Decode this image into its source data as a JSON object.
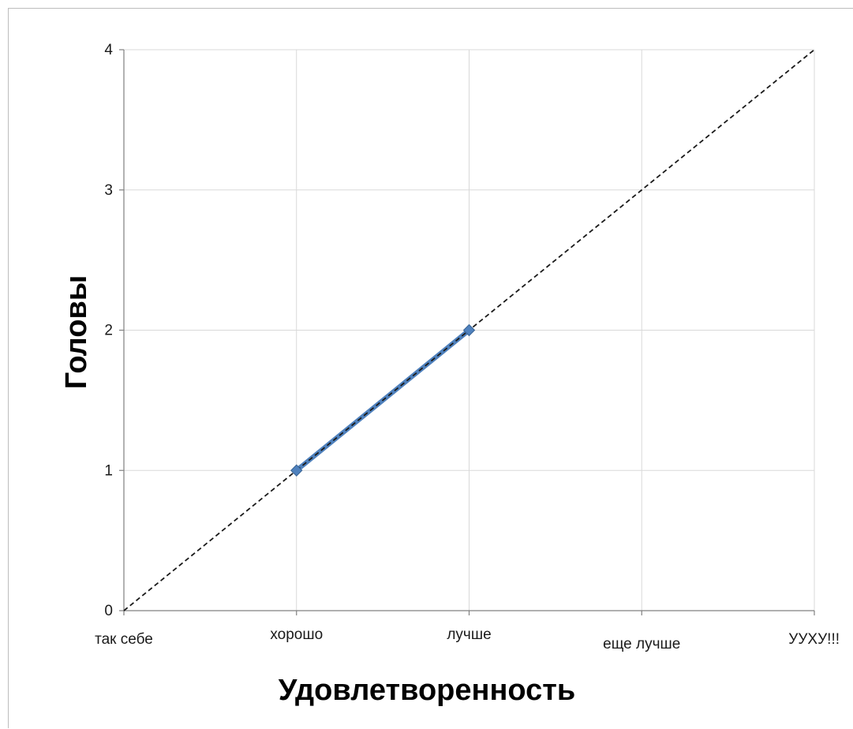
{
  "chart_data": {
    "type": "line",
    "title": "",
    "xlabel": "Удовлетворенность",
    "ylabel": "Головы",
    "categories": [
      "так себе",
      "хорошо",
      "лучше",
      "еще лучше",
      "УУХУ!!!"
    ],
    "yticks": [
      "0",
      "1",
      "2",
      "3",
      "4"
    ],
    "ylim": [
      0,
      4
    ],
    "grid": true,
    "series": [
      {
        "points": [
          {
            "x": "хорошо",
            "y": 1
          },
          {
            "x": "лучше",
            "y": 2
          }
        ]
      }
    ],
    "trendline": {
      "style": "dashed",
      "from": {
        "x": "так себе",
        "y": 0
      },
      "to": {
        "x": "УУХУ!!!",
        "y": 4
      }
    },
    "colors": {
      "series": "#4f81bd",
      "trendline": "#1a1a1a",
      "grid": "#d9d9d9",
      "axis": "#808080"
    }
  }
}
